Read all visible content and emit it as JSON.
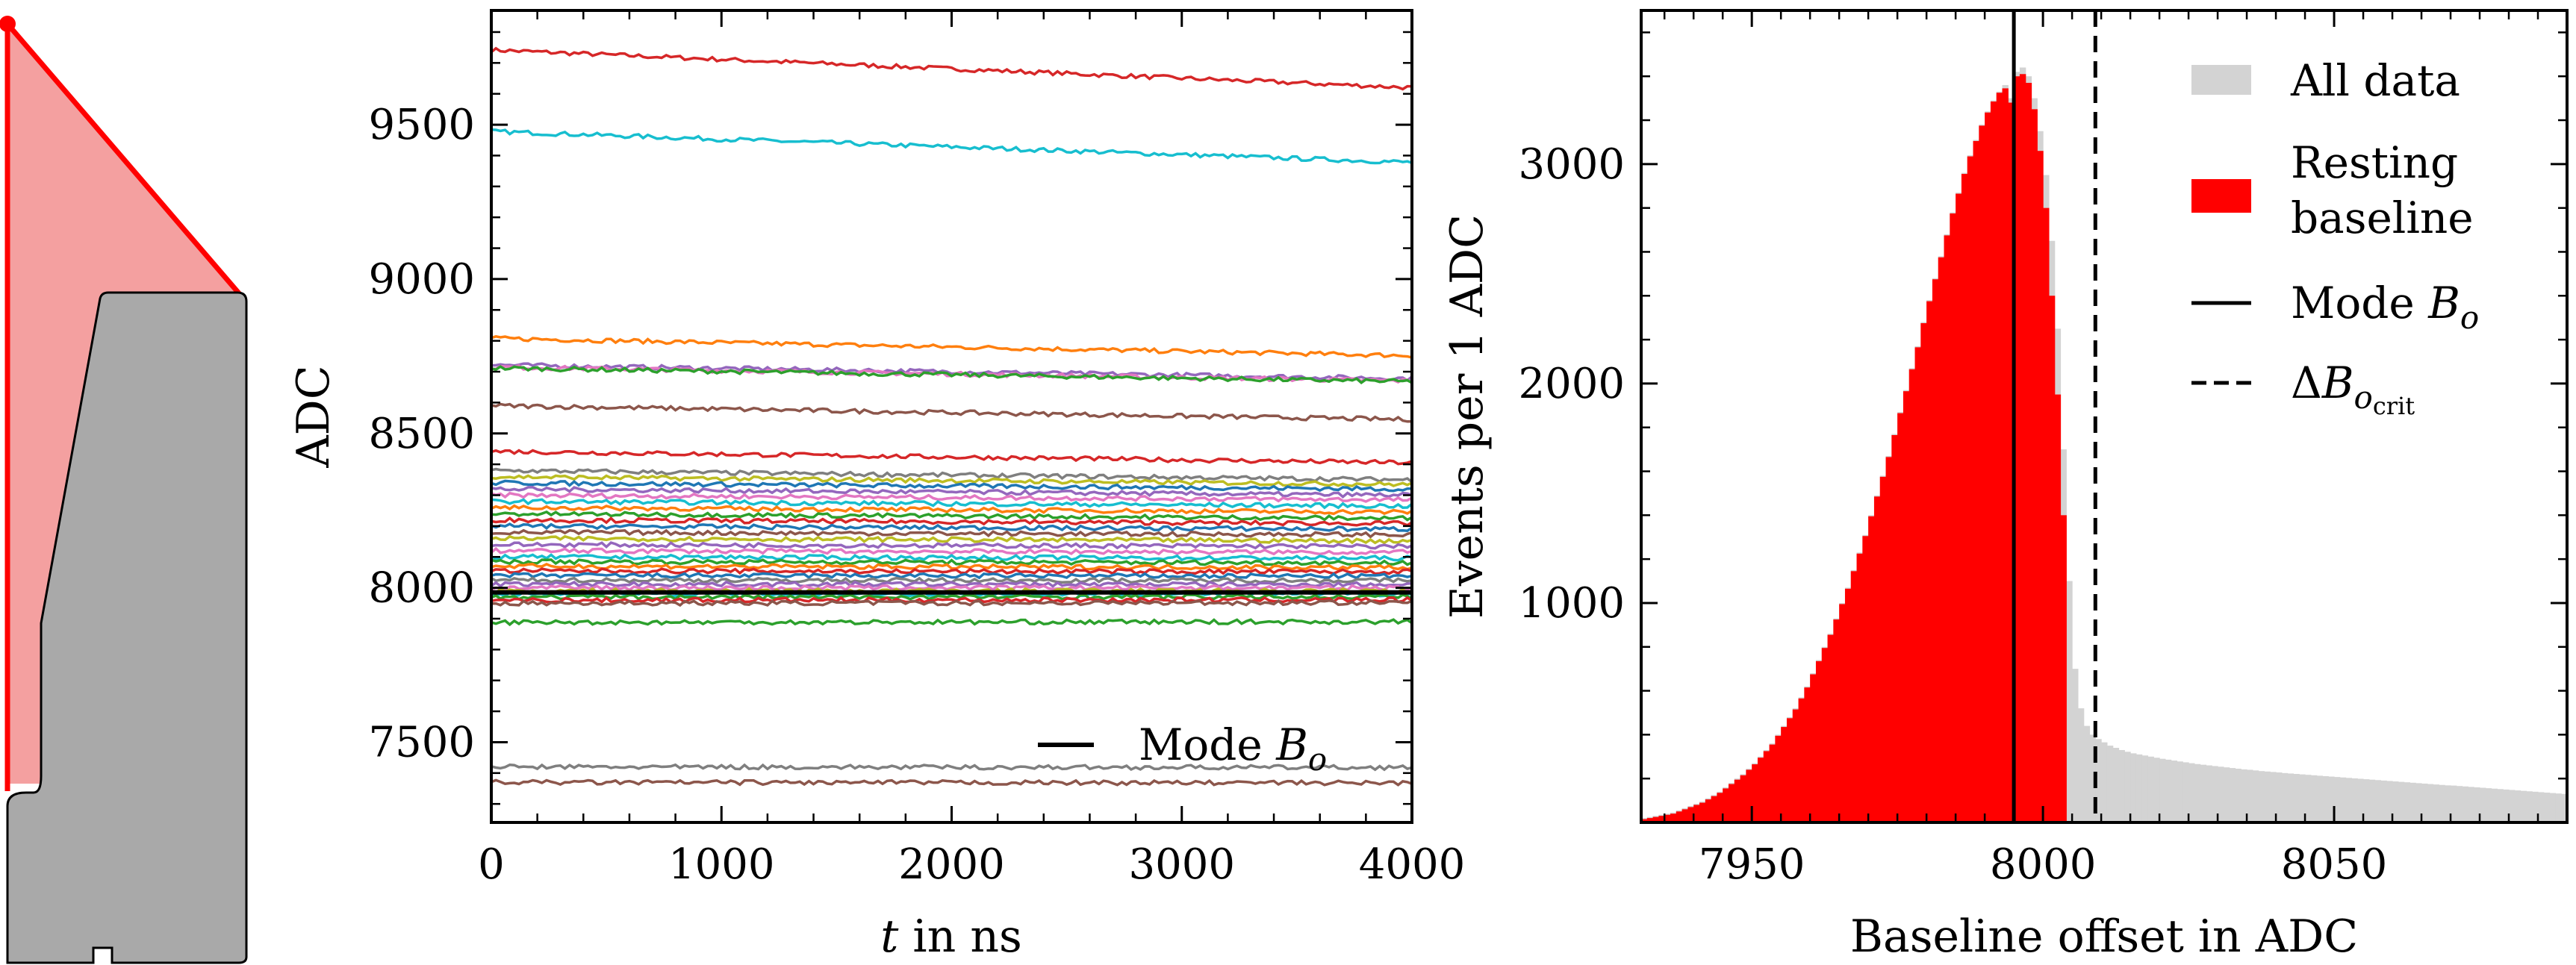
{
  "chart_data": [
    {
      "type": "line",
      "panel": "waveforms",
      "title": "",
      "xlabel_math": "t",
      "xlabel_rest": " in ns",
      "ylabel": "ADC",
      "xlim": [
        0,
        4000
      ],
      "ylim": [
        7240,
        9870
      ],
      "xticks": [
        0,
        1000,
        2000,
        3000,
        4000
      ],
      "yticks": [
        7500,
        8000,
        8500,
        9000,
        9500
      ],
      "legend": {
        "position": "bottom-right",
        "text": "Mode ",
        "math": "B",
        "sub": "o"
      },
      "mode_line": 7985,
      "series": [
        {
          "start": 9742,
          "end": 9620,
          "color": "#d62728"
        },
        {
          "start": 9478,
          "end": 9378,
          "color": "#17becf"
        },
        {
          "start": 8808,
          "end": 8752,
          "color": "#ff7f0e"
        },
        {
          "start": 8722,
          "end": 8678,
          "color": "#9467bd"
        },
        {
          "start": 8715,
          "end": 8670,
          "color": "#e377c2"
        },
        {
          "start": 8712,
          "end": 8668,
          "color": "#2ca02c"
        },
        {
          "start": 8590,
          "end": 8545,
          "color": "#8c564b"
        },
        {
          "start": 8442,
          "end": 8405,
          "color": "#d62728"
        },
        {
          "start": 8380,
          "end": 8350,
          "color": "#7f7f7f"
        },
        {
          "start": 8360,
          "end": 8335,
          "color": "#bcbd22"
        },
        {
          "start": 8340,
          "end": 8320,
          "color": "#1f77b4"
        },
        {
          "start": 8320,
          "end": 8300,
          "color": "#9467bd"
        },
        {
          "start": 8300,
          "end": 8285,
          "color": "#e377c2"
        },
        {
          "start": 8280,
          "end": 8265,
          "color": "#17becf"
        },
        {
          "start": 8260,
          "end": 8245,
          "color": "#ff7f0e"
        },
        {
          "start": 8240,
          "end": 8225,
          "color": "#2ca02c"
        },
        {
          "start": 8220,
          "end": 8208,
          "color": "#d62728"
        },
        {
          "start": 8200,
          "end": 8190,
          "color": "#1f77b4"
        },
        {
          "start": 8180,
          "end": 8172,
          "color": "#8c564b"
        },
        {
          "start": 8160,
          "end": 8152,
          "color": "#bcbd22"
        },
        {
          "start": 8140,
          "end": 8134,
          "color": "#9467bd"
        },
        {
          "start": 8120,
          "end": 8115,
          "color": "#e377c2"
        },
        {
          "start": 8100,
          "end": 8096,
          "color": "#17becf"
        },
        {
          "start": 8085,
          "end": 8081,
          "color": "#2ca02c"
        },
        {
          "start": 8070,
          "end": 8066,
          "color": "#ff7f0e"
        },
        {
          "start": 8055,
          "end": 8052,
          "color": "#d62728"
        },
        {
          "start": 8040,
          "end": 8038,
          "color": "#1f77b4"
        },
        {
          "start": 8025,
          "end": 8024,
          "color": "#7f7f7f"
        },
        {
          "start": 8012,
          "end": 8011,
          "color": "#9467bd"
        },
        {
          "start": 8000,
          "end": 8000,
          "color": "#e377c2"
        },
        {
          "start": 7990,
          "end": 7990,
          "color": "#bcbd22"
        },
        {
          "start": 7980,
          "end": 7980,
          "color": "#17becf"
        },
        {
          "start": 7970,
          "end": 7971,
          "color": "#2ca02c"
        },
        {
          "start": 7960,
          "end": 7961,
          "color": "#d62728"
        },
        {
          "start": 7950,
          "end": 7952,
          "color": "#8c564b"
        },
        {
          "start": 7888,
          "end": 7890,
          "color": "#2ca02c"
        },
        {
          "start": 7420,
          "end": 7418,
          "color": "#7f7f7f"
        },
        {
          "start": 7370,
          "end": 7368,
          "color": "#8c564b"
        }
      ]
    },
    {
      "type": "bar",
      "panel": "histogram",
      "title": "",
      "xlabel": "Baseline offset in ADC",
      "ylabel": "Events per 1 ADC",
      "xlim": [
        7931,
        8090
      ],
      "ylim": [
        0,
        3700
      ],
      "xticks": [
        7950,
        8000,
        8050
      ],
      "yticks": [
        1000,
        2000,
        3000
      ],
      "bin_width": 1,
      "bin_start": 7931,
      "all_data": [
        20,
        25,
        30,
        35,
        40,
        45,
        55,
        65,
        75,
        85,
        95,
        110,
        125,
        140,
        160,
        180,
        200,
        220,
        245,
        270,
        300,
        330,
        360,
        400,
        440,
        480,
        520,
        570,
        620,
        680,
        740,
        800,
        860,
        930,
        1000,
        1070,
        1150,
        1230,
        1310,
        1400,
        1490,
        1580,
        1670,
        1770,
        1870,
        1970,
        2070,
        2170,
        2280,
        2380,
        2480,
        2580,
        2680,
        2780,
        2870,
        2960,
        3040,
        3110,
        3180,
        3240,
        3290,
        3330,
        3360,
        3300,
        3420,
        3440,
        3400,
        3300,
        3150,
        2950,
        2650,
        2250,
        1700,
        1100,
        700,
        520,
        440,
        400,
        380,
        365,
        350,
        340,
        330,
        322,
        315,
        310,
        305,
        300,
        295,
        290,
        286,
        282,
        278,
        274,
        270,
        266,
        263,
        260,
        257,
        254,
        251,
        248,
        245,
        242,
        240,
        237,
        234,
        232,
        230,
        228,
        225,
        223,
        221,
        219,
        217,
        215,
        213,
        211,
        209,
        207,
        205,
        203,
        201,
        199,
        197,
        195,
        193,
        191,
        189,
        187,
        185,
        183,
        181,
        179,
        177,
        175,
        173,
        171,
        169,
        168,
        166,
        164,
        162,
        160,
        158,
        156,
        154,
        152,
        150,
        148,
        146,
        144,
        142,
        140,
        138,
        136,
        134,
        132,
        130,
        128,
        126
      ],
      "resting": [
        15,
        20,
        25,
        30,
        35,
        40,
        50,
        60,
        70,
        80,
        90,
        105,
        120,
        135,
        155,
        175,
        195,
        215,
        240,
        265,
        295,
        325,
        355,
        395,
        435,
        475,
        515,
        565,
        615,
        675,
        735,
        795,
        855,
        925,
        995,
        1065,
        1145,
        1225,
        1305,
        1395,
        1485,
        1575,
        1665,
        1765,
        1865,
        1965,
        2065,
        2165,
        2275,
        2375,
        2475,
        2575,
        2675,
        2775,
        2865,
        2955,
        3035,
        3105,
        3175,
        3235,
        3285,
        3325,
        3345,
        3280,
        3400,
        3410,
        3370,
        3250,
        3060,
        2800,
        2400,
        1950,
        1400,
        0
      ],
      "mode": 7995,
      "critical": 8009,
      "legend": {
        "position": "top-right",
        "all_data": "All data",
        "resting_line1": "Resting",
        "resting_line2": "baseline",
        "mode_text": "Mode ",
        "mode_math": "B",
        "mode_sub": "o",
        "crit_delta": "Δ",
        "crit_math": "B",
        "crit_sub": "o",
        "crit_subsub": "crit"
      },
      "colors": {
        "all_data": "#d3d3d3",
        "resting": "#ff0000",
        "lines": "#000000"
      }
    }
  ],
  "diagram": {
    "colors": {
      "beam_fill": "#f4a0a0",
      "beam_edge": "#ff0000",
      "body_fill": "#a9a9a9",
      "body_edge": "#000000"
    }
  }
}
